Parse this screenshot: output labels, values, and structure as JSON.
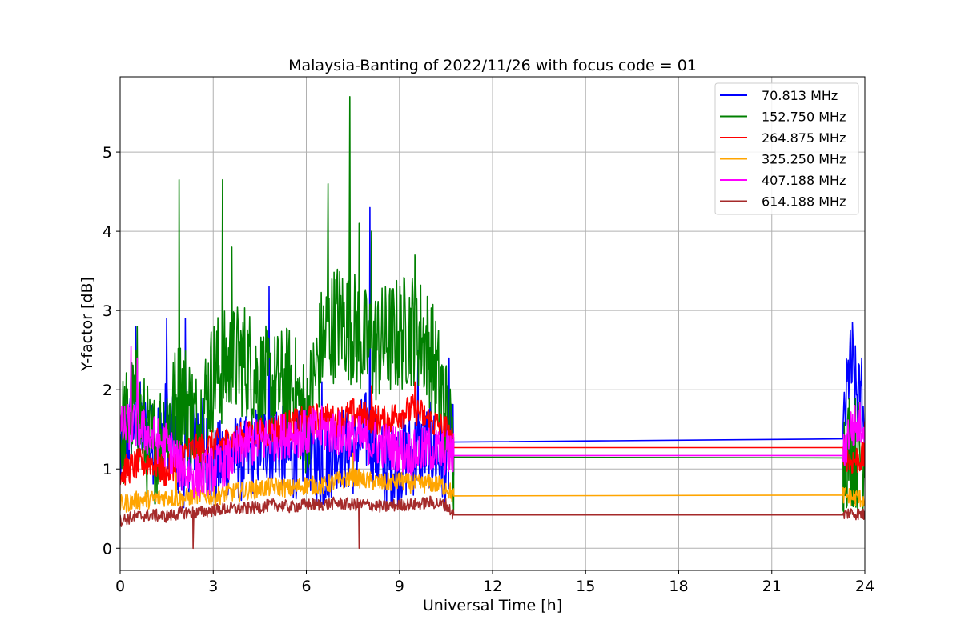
{
  "chart_data": {
    "type": "line",
    "title": "Malaysia-Banting of 2022/11/26 with focus code = 01",
    "xlabel": "Universal Time [h]",
    "ylabel": "Y-factor [dB]",
    "xlim": [
      0,
      24
    ],
    "ylim": [
      -0.28,
      5.95
    ],
    "xticks": [
      0,
      3,
      6,
      9,
      12,
      15,
      18,
      21,
      24
    ],
    "yticks": [
      0,
      1,
      2,
      3,
      4,
      5
    ],
    "grid": true,
    "legend_position": "top-right",
    "series": [
      {
        "name": "70.813 MHz",
        "color": "#0000ff",
        "x": [
          0,
          0.5,
          1,
          1.5,
          2,
          2.5,
          3,
          3.5,
          4,
          4.5,
          5,
          5.5,
          6,
          6.5,
          7,
          7.5,
          8,
          8.5,
          9,
          9.5,
          10,
          10.5,
          10.75,
          23.3,
          23.5,
          24
        ],
        "y": [
          1.1,
          1.7,
          1.3,
          1.6,
          1.0,
          1.5,
          1.0,
          1.2,
          1.1,
          1.3,
          1.4,
          1.1,
          1.3,
          1.0,
          1.3,
          1.2,
          1.5,
          1.0,
          1.1,
          1.2,
          1.3,
          1.0,
          1.34,
          1.38,
          2.3,
          1.6
        ],
        "peaks": [
          [
            0.5,
            2.8
          ],
          [
            1.5,
            2.9
          ],
          [
            2.1,
            2.9
          ],
          [
            4.8,
            3.3
          ],
          [
            6.5,
            2.1
          ],
          [
            8.05,
            4.3
          ],
          [
            9.6,
            2.5
          ],
          [
            10.6,
            2.4
          ],
          [
            23.6,
            2.85
          ],
          [
            23.9,
            2.4
          ]
        ]
      },
      {
        "name": "152.750 MHz",
        "color": "#008000",
        "x": [
          0,
          0.5,
          1,
          1.5,
          2,
          2.5,
          3,
          3.5,
          4,
          4.5,
          5,
          5.5,
          6,
          6.5,
          7,
          7.5,
          8,
          8.5,
          9,
          9.5,
          10,
          10.5,
          10.75,
          23.3,
          23.5,
          24
        ],
        "y": [
          1.4,
          1.8,
          1.2,
          1.6,
          2.0,
          1.5,
          2.2,
          2.3,
          2.4,
          2.1,
          2.0,
          2.1,
          1.6,
          2.6,
          2.9,
          2.8,
          2.5,
          2.6,
          2.7,
          2.8,
          2.5,
          1.7,
          1.15,
          1.14,
          1.3,
          1.1
        ],
        "peaks": [
          [
            0.55,
            2.8
          ],
          [
            1.9,
            4.65
          ],
          [
            3.3,
            4.65
          ],
          [
            3.6,
            3.8
          ],
          [
            6.7,
            4.6
          ],
          [
            7.4,
            5.7
          ],
          [
            7.7,
            4.1
          ],
          [
            8.1,
            4.0
          ],
          [
            9.5,
            3.7
          ],
          [
            10.4,
            2.3
          ]
        ]
      },
      {
        "name": "264.875 MHz",
        "color": "#ff0000",
        "x": [
          0,
          0.5,
          1,
          1.5,
          2,
          2.5,
          3,
          3.5,
          4,
          4.5,
          5,
          5.5,
          6,
          6.5,
          7,
          7.5,
          8,
          8.5,
          9,
          9.5,
          10,
          10.5,
          10.75,
          23.3,
          23.5,
          24
        ],
        "y": [
          0.95,
          1.05,
          1.1,
          0.95,
          1.2,
          1.25,
          1.3,
          1.35,
          1.4,
          1.45,
          1.5,
          1.55,
          1.6,
          1.65,
          1.6,
          1.7,
          1.65,
          1.6,
          1.7,
          1.75,
          1.6,
          1.5,
          1.27,
          1.27,
          1.1,
          1.15
        ],
        "peaks": [
          [
            8.1,
            2.05
          ],
          [
            9.5,
            2.1
          ],
          [
            24,
            1.6
          ]
        ]
      },
      {
        "name": "325.250 MHz",
        "color": "#ffa500",
        "x": [
          0,
          0.5,
          1,
          1.5,
          2,
          2.5,
          3,
          3.5,
          4,
          4.5,
          5,
          5.5,
          6,
          6.5,
          7,
          7.5,
          8,
          8.5,
          9,
          9.5,
          10,
          10.5,
          10.75,
          23.3,
          23.5,
          24
        ],
        "y": [
          0.55,
          0.6,
          0.62,
          0.65,
          0.62,
          0.68,
          0.65,
          0.7,
          0.72,
          0.75,
          0.78,
          0.75,
          0.8,
          0.78,
          0.85,
          0.9,
          0.85,
          0.82,
          0.85,
          0.8,
          0.82,
          0.78,
          0.66,
          0.67,
          0.65,
          0.62
        ],
        "peaks": [
          [
            1.8,
            0.95
          ],
          [
            7.5,
            1.2
          ],
          [
            9.4,
            1.15
          ]
        ]
      },
      {
        "name": "407.188 MHz",
        "color": "#ff00ff",
        "x": [
          0,
          0.5,
          1,
          1.5,
          2,
          2.5,
          3,
          3.5,
          4,
          4.5,
          5,
          5.5,
          6,
          6.5,
          7,
          7.5,
          8,
          8.5,
          9,
          9.5,
          10,
          10.5,
          10.75,
          23.3,
          23.5,
          24
        ],
        "y": [
          1.5,
          1.55,
          1.4,
          1.3,
          1.0,
          0.9,
          1.0,
          1.1,
          1.3,
          1.35,
          1.4,
          1.45,
          1.45,
          1.5,
          1.45,
          1.4,
          1.35,
          1.3,
          1.25,
          1.2,
          1.25,
          1.2,
          1.17,
          1.17,
          1.5,
          1.6
        ],
        "peaks": [
          [
            0.35,
            2.55
          ],
          [
            0.55,
            2.4
          ]
        ]
      },
      {
        "name": "614.188 MHz",
        "color": "#a52a2a",
        "x": [
          0,
          0.5,
          1,
          1.5,
          2,
          2.5,
          3,
          3.5,
          4,
          4.5,
          5,
          5.5,
          6,
          6.5,
          7,
          7.5,
          8,
          8.5,
          9,
          9.5,
          10,
          10.5,
          10.75,
          23.3,
          23.5,
          24
        ],
        "y": [
          0.35,
          0.4,
          0.42,
          0.4,
          0.45,
          0.45,
          0.48,
          0.5,
          0.5,
          0.52,
          0.55,
          0.52,
          0.55,
          0.55,
          0.57,
          0.55,
          0.55,
          0.52,
          0.55,
          0.55,
          0.58,
          0.55,
          0.42,
          0.42,
          0.45,
          0.42
        ],
        "dips": [
          [
            2.35,
            0.0
          ],
          [
            7.7,
            0.0
          ]
        ]
      }
    ]
  }
}
